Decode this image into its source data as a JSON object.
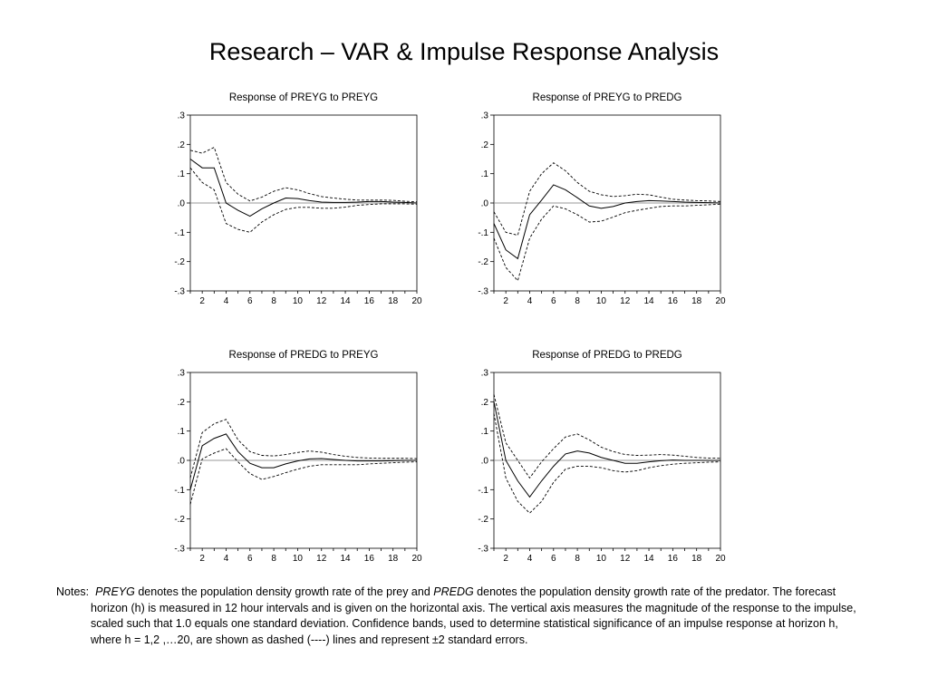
{
  "title": "Research – VAR & Impulse Response Analysis",
  "notes": {
    "lead": "Notes:",
    "preyg_term": "PREYG",
    "text1": " denotes the population density growth rate of the prey and ",
    "predg_term": "PREDG",
    "text2": " denotes the population density growth rate of the predator. The forecast horizon (h) is measured in 12 hour intervals and is given on the horizontal axis.  The vertical axis measures the magnitude of the response to the impulse, scaled such that 1.0 equals one standard deviation.  Confidence bands, used to determine statistical significance of an impulse response at horizon h, where h = 1,2 ,…20, are shown as dashed (----) lines and represent ±2 standard errors."
  },
  "chart_data": [
    {
      "type": "line",
      "title": "Response of PREYG to PREYG",
      "x": [
        1,
        2,
        3,
        4,
        5,
        6,
        7,
        8,
        9,
        10,
        11,
        12,
        13,
        14,
        15,
        16,
        17,
        18,
        19,
        20
      ],
      "xticks": [
        "2",
        "4",
        "6",
        "8",
        "10",
        "12",
        "14",
        "16",
        "18",
        "20"
      ],
      "yticks": [
        ".3",
        ".2",
        ".1",
        ".0",
        "-.1",
        "-.2",
        "-.3"
      ],
      "ylim": [
        -0.3,
        0.3
      ],
      "series": [
        {
          "style": "solid",
          "values": [
            0.15,
            0.12,
            0.12,
            0.0,
            -0.025,
            -0.045,
            -0.02,
            0.0,
            0.017,
            0.015,
            0.008,
            0.003,
            0.002,
            0.002,
            0.003,
            0.005,
            0.005,
            0.003,
            0.002,
            0.0
          ]
        },
        {
          "style": "dashed",
          "values": [
            0.18,
            0.17,
            0.19,
            0.07,
            0.03,
            0.007,
            0.02,
            0.04,
            0.052,
            0.045,
            0.032,
            0.022,
            0.017,
            0.013,
            0.01,
            0.01,
            0.01,
            0.009,
            0.006,
            0.004
          ]
        },
        {
          "style": "dashed",
          "values": [
            0.12,
            0.07,
            0.045,
            -0.07,
            -0.09,
            -0.1,
            -0.065,
            -0.04,
            -0.022,
            -0.015,
            -0.015,
            -0.018,
            -0.018,
            -0.014,
            -0.008,
            -0.005,
            -0.003,
            -0.003,
            -0.003,
            -0.004
          ]
        }
      ]
    },
    {
      "type": "line",
      "title": "Response of PREYG to PREDG",
      "x": [
        1,
        2,
        3,
        4,
        5,
        6,
        7,
        8,
        9,
        10,
        11,
        12,
        13,
        14,
        15,
        16,
        17,
        18,
        19,
        20
      ],
      "xticks": [
        "2",
        "4",
        "6",
        "8",
        "10",
        "12",
        "14",
        "16",
        "18",
        "20"
      ],
      "yticks": [
        ".3",
        ".2",
        ".1",
        ".0",
        "-.1",
        "-.2",
        "-.3"
      ],
      "ylim": [
        -0.3,
        0.3
      ],
      "series": [
        {
          "style": "solid",
          "values": [
            -0.07,
            -0.16,
            -0.19,
            -0.04,
            0.01,
            0.062,
            0.045,
            0.018,
            -0.01,
            -0.018,
            -0.012,
            0.0,
            0.005,
            0.008,
            0.007,
            0.005,
            0.003,
            0.002,
            0.001,
            0.0
          ]
        },
        {
          "style": "dashed",
          "values": [
            -0.03,
            -0.1,
            -0.11,
            0.04,
            0.1,
            0.137,
            0.11,
            0.07,
            0.04,
            0.028,
            0.022,
            0.025,
            0.03,
            0.028,
            0.02,
            0.013,
            0.01,
            0.008,
            0.007,
            0.005
          ]
        },
        {
          "style": "dashed",
          "values": [
            -0.12,
            -0.22,
            -0.265,
            -0.12,
            -0.055,
            -0.01,
            -0.02,
            -0.04,
            -0.065,
            -0.062,
            -0.048,
            -0.033,
            -0.025,
            -0.018,
            -0.012,
            -0.01,
            -0.01,
            -0.008,
            -0.006,
            -0.004
          ]
        }
      ]
    },
    {
      "type": "line",
      "title": "Response of PREDG to PREYG",
      "x": [
        1,
        2,
        3,
        4,
        5,
        6,
        7,
        8,
        9,
        10,
        11,
        12,
        13,
        14,
        15,
        16,
        17,
        18,
        19,
        20
      ],
      "xticks": [
        "2",
        "4",
        "6",
        "8",
        "10",
        "12",
        "14",
        "16",
        "18",
        "20"
      ],
      "yticks": [
        ".3",
        ".2",
        ".1",
        ".0",
        "-.1",
        "-.2",
        "-.3"
      ],
      "ylim": [
        -0.3,
        0.3
      ],
      "series": [
        {
          "style": "solid",
          "values": [
            -0.1,
            0.05,
            0.075,
            0.09,
            0.03,
            -0.01,
            -0.025,
            -0.025,
            -0.012,
            -0.002,
            0.005,
            0.006,
            0.003,
            0.0,
            -0.002,
            -0.002,
            -0.002,
            -0.001,
            0.0,
            0.0
          ]
        },
        {
          "style": "dashed",
          "values": [
            -0.06,
            0.095,
            0.125,
            0.14,
            0.07,
            0.03,
            0.017,
            0.015,
            0.02,
            0.027,
            0.032,
            0.028,
            0.02,
            0.014,
            0.01,
            0.008,
            0.007,
            0.007,
            0.007,
            0.006
          ]
        },
        {
          "style": "dashed",
          "values": [
            -0.15,
            0.005,
            0.025,
            0.04,
            -0.005,
            -0.045,
            -0.065,
            -0.055,
            -0.042,
            -0.03,
            -0.02,
            -0.015,
            -0.015,
            -0.015,
            -0.015,
            -0.012,
            -0.01,
            -0.008,
            -0.006,
            -0.005
          ]
        }
      ]
    },
    {
      "type": "line",
      "title": "Response of PREDG to PREDG",
      "x": [
        1,
        2,
        3,
        4,
        5,
        6,
        7,
        8,
        9,
        10,
        11,
        12,
        13,
        14,
        15,
        16,
        17,
        18,
        19,
        20
      ],
      "xticks": [
        "2",
        "4",
        "6",
        "8",
        "10",
        "12",
        "14",
        "16",
        "18",
        "20"
      ],
      "yticks": [
        ".3",
        ".2",
        ".1",
        ".0",
        "-.1",
        "-.2",
        "-.3"
      ],
      "ylim": [
        -0.3,
        0.3
      ],
      "series": [
        {
          "style": "solid",
          "values": [
            0.2,
            0.0,
            -0.07,
            -0.125,
            -0.07,
            -0.02,
            0.022,
            0.032,
            0.025,
            0.01,
            0.0,
            -0.01,
            -0.01,
            -0.005,
            -0.001,
            0.001,
            0.0,
            0.0,
            0.0,
            0.0
          ]
        },
        {
          "style": "dashed",
          "values": [
            0.225,
            0.06,
            0.0,
            -0.06,
            -0.005,
            0.04,
            0.08,
            0.09,
            0.07,
            0.045,
            0.03,
            0.02,
            0.017,
            0.018,
            0.02,
            0.018,
            0.014,
            0.01,
            0.008,
            0.007
          ]
        },
        {
          "style": "dashed",
          "values": [
            0.16,
            -0.06,
            -0.14,
            -0.18,
            -0.14,
            -0.075,
            -0.03,
            -0.02,
            -0.02,
            -0.025,
            -0.035,
            -0.04,
            -0.035,
            -0.025,
            -0.018,
            -0.013,
            -0.01,
            -0.008,
            -0.006,
            -0.005
          ]
        }
      ]
    }
  ]
}
